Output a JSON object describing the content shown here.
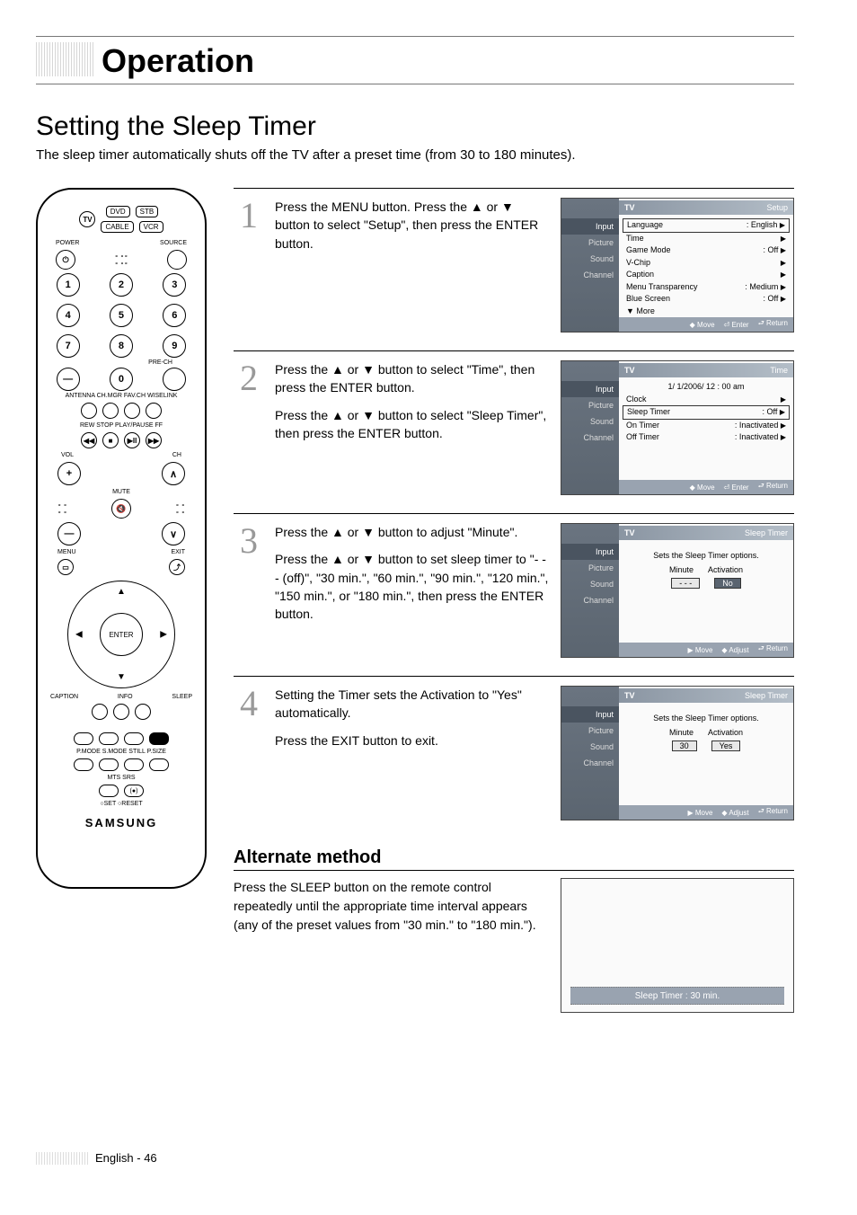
{
  "header": {
    "title": "Operation"
  },
  "section": {
    "title": "Setting the Sleep Timer",
    "description": "The sleep timer automatically shuts off the TV after a preset time (from 30 to 180 minutes)."
  },
  "remote": {
    "mode_buttons": [
      "DVD",
      "STB",
      "CABLE",
      "VCR"
    ],
    "tv": "TV",
    "power": "POWER",
    "source": "SOURCE",
    "pre_ch": "PRE-CH",
    "row_labels1": "ANTENNA  CH.MGR   FAV.CH  WISELINK",
    "row_labels2": "REW     STOP   PLAY/PAUSE   FF",
    "vol": "VOL",
    "ch": "CH",
    "mute": "MUTE",
    "menu": "MENU",
    "exit": "EXIT",
    "enter": "ENTER",
    "caption": "CAPTION",
    "info": "INFO",
    "sleep": "SLEEP",
    "row_labels3": "P.MODE   S.MODE    STILL    P.SIZE",
    "row_labels4": "MTS      SRS",
    "set_reset": "○SET   ○RESET",
    "brand": "SAMSUNG"
  },
  "steps": [
    {
      "no": "1",
      "paragraphs": [
        "Press the MENU button. Press the ▲ or ▼ button to select \"Setup\", then press the ENTER button."
      ],
      "osd": {
        "title_tv": "TV",
        "title": "Setup",
        "tabs": [
          "Input",
          "Picture",
          "Sound",
          "Channel"
        ],
        "rows": [
          {
            "l": "Language",
            "r": ": English",
            "arr": "▶",
            "hl": true
          },
          {
            "l": "Time",
            "r": "",
            "arr": "▶"
          },
          {
            "l": "Game Mode",
            "r": ": Off",
            "arr": "▶"
          },
          {
            "l": "V-Chip",
            "r": "",
            "arr": "▶"
          },
          {
            "l": "Caption",
            "r": "",
            "arr": "▶"
          },
          {
            "l": "Menu Transparency",
            "r": ": Medium",
            "arr": "▶"
          },
          {
            "l": "Blue Screen",
            "r": ": Off",
            "arr": "▶"
          },
          {
            "l": "▼ More",
            "r": "",
            "arr": ""
          }
        ],
        "footer": [
          "◆ Move",
          "⏎ Enter",
          "⮐ Return"
        ]
      }
    },
    {
      "no": "2",
      "paragraphs": [
        "Press the ▲ or ▼ button to select \"Time\", then press the ENTER button.",
        "Press the ▲ or ▼ button to select \"Sleep Timer\", then press the ENTER button."
      ],
      "osd": {
        "title_tv": "TV",
        "title": "Time",
        "tabs": [
          "Input",
          "Picture",
          "Sound",
          "Channel"
        ],
        "toprow": "1/ 1/2006/ 12 : 00 am",
        "rows": [
          {
            "l": "Clock",
            "r": "",
            "arr": "▶"
          },
          {
            "l": "Sleep Timer",
            "r": ": Off",
            "arr": "▶",
            "hl": true
          },
          {
            "l": "On Timer",
            "r": ": Inactivated",
            "arr": "▶"
          },
          {
            "l": "Off Timer",
            "r": ": Inactivated",
            "arr": "▶"
          }
        ],
        "footer": [
          "◆ Move",
          "⏎ Enter",
          "⮐ Return"
        ]
      }
    },
    {
      "no": "3",
      "paragraphs": [
        "Press the ▲ or ▼ button to adjust \"Minute\".",
        "Press the ▲ or ▼ button to set sleep timer to \"- - - (off)\", \"30 min.\", \"60 min.\", \"90 min.\", \"120 min.\", \"150 min.\", or \"180 min.\", then press the ENTER button."
      ],
      "osd": {
        "title_tv": "TV",
        "title": "Sleep Timer",
        "tabs": [
          "Input",
          "Picture",
          "Sound",
          "Channel"
        ],
        "message": "Sets the Sleep Timer options.",
        "pills": {
          "left": "Minute",
          "right": "Activation",
          "v1": "- - -",
          "v2": "No",
          "v2style": "no"
        },
        "footer": [
          "▶ Move",
          "◆ Adjust",
          "⮐ Return"
        ]
      }
    },
    {
      "no": "4",
      "paragraphs": [
        "Setting the Timer sets the Activation to \"Yes\" automatically.",
        "Press the EXIT button to exit."
      ],
      "osd": {
        "title_tv": "TV",
        "title": "Sleep Timer",
        "tabs": [
          "Input",
          "Picture",
          "Sound",
          "Channel"
        ],
        "message": "Sets the Sleep Timer options.",
        "pills": {
          "left": "Minute",
          "right": "Activation",
          "v1": "30",
          "v2": "Yes"
        },
        "footer": [
          "▶ Move",
          "◆ Adjust",
          "⮐ Return"
        ]
      }
    }
  ],
  "alternate": {
    "heading": "Alternate method",
    "text": "Press the SLEEP button on the remote control repeatedly until the appropriate time interval appears (any of the preset values from \"30 min.\" to \"180 min.\").",
    "toast": "Sleep Timer : 30 min."
  },
  "footer": {
    "text": "English - 46"
  }
}
